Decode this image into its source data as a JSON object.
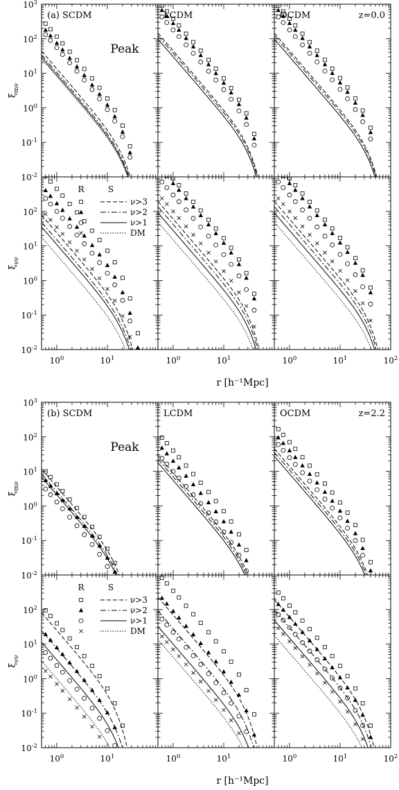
{
  "figure": {
    "xlabel_prefix": "r",
    "xlabel_unit": "[h⁻¹Mpc]",
    "ylabel_top": "ξ",
    "ylabel_top_sub": "mν",
    "ylabel_bottom": "ξ",
    "ylabel_bottom_sub": "νν",
    "method_label": "Peak",
    "xticks": [
      "10",
      "10",
      "10"
    ],
    "xtick_exps": [
      "0",
      "1",
      "2"
    ],
    "yticks": [
      "10",
      "10",
      "10",
      "10",
      "10",
      "10"
    ],
    "ytick_exps": [
      "-2",
      "-1",
      "0",
      "1",
      "2",
      "3"
    ],
    "legend": {
      "col_r": "R",
      "col_s": "S",
      "entries": [
        {
          "label": "ν>3",
          "marker": "square",
          "line": "dashed"
        },
        {
          "label": "ν>2",
          "marker": "triangle",
          "line": "dashdot"
        },
        {
          "label": "ν>1",
          "marker": "circle",
          "line": "solid"
        },
        {
          "label": "DM",
          "marker": "cross",
          "line": "dotted"
        }
      ]
    }
  },
  "blocks": [
    {
      "tag": "(a)",
      "z_label": "z=0.0",
      "models": [
        "SCDM",
        "LCDM",
        "OCDM"
      ]
    },
    {
      "tag": "(b)",
      "z_label": "z=2.2",
      "models": [
        "SCDM",
        "LCDM",
        "OCDM"
      ]
    }
  ],
  "chart_data": {
    "type": "scatter",
    "xscale": "log",
    "yscale": "log",
    "xlim": [
      0.5,
      100
    ],
    "ylim": [
      0.01,
      1000
    ],
    "r_points": [
      0.6,
      0.75,
      1.0,
      1.3,
      1.8,
      2.5,
      3.5,
      5.0,
      7.0,
      10.0,
      14.0,
      20.0,
      28.0,
      40.0
    ],
    "legend_position": "upper-center",
    "panels": [
      {
        "block": "(a)",
        "model": "SCDM",
        "row": "xi_mnu",
        "s3": 13.5,
        "s2": 10.5,
        "s1": 9.0,
        "dm": 8.0,
        "r3": 115,
        "r2": 75,
        "r1": 55,
        "r0": 0,
        "cut": 23,
        "sharp": 2.0
      },
      {
        "block": "(a)",
        "model": "LCDM",
        "row": "xi_mnu",
        "s3": 45,
        "s2": 38,
        "s1": 30,
        "dm": 0,
        "r3": 380,
        "r2": 280,
        "r1": 180,
        "r0": 0,
        "cut": 36,
        "sharp": 2.2
      },
      {
        "block": "(a)",
        "model": "OCDM",
        "row": "xi_mnu",
        "s3": 45,
        "s2": 38,
        "s1": 30,
        "dm": 0,
        "r3": 380,
        "r2": 280,
        "r1": 180,
        "r0": 0,
        "cut": 42,
        "sharp": 2.2
      },
      {
        "block": "(a)",
        "model": "SCDM",
        "row": "xi_nunu",
        "s3": 24,
        "s2": 15,
        "s1": 11,
        "dm": 5.5,
        "r3": 450,
        "r2": 170,
        "r1": 100,
        "r0": 35,
        "cut": 23,
        "sharp": 2.0
      },
      {
        "block": "(a)",
        "model": "LCDM",
        "row": "xi_nunu",
        "s3": 60,
        "s2": 42,
        "s1": 28,
        "dm": 15,
        "r3": 900,
        "r2": 650,
        "r1": 300,
        "r0": 100,
        "cut": 36,
        "sharp": 2.2
      },
      {
        "block": "(a)",
        "model": "OCDM",
        "row": "xi_nunu",
        "s3": 60,
        "s2": 42,
        "s1": 28,
        "dm": 15,
        "r3": 900,
        "r2": 650,
        "r1": 300,
        "r0": 100,
        "cut": 42,
        "sharp": 2.2
      },
      {
        "block": "(b)",
        "model": "SCDM",
        "row": "xi_mnu",
        "s3": 3.6,
        "s2": 2.6,
        "s1": 2.1,
        "dm": 0,
        "r3": 4.2,
        "r2": 2.3,
        "r1": 1.3,
        "r0": 0,
        "cut": 17,
        "sharp": 2.0
      },
      {
        "block": "(b)",
        "model": "LCDM",
        "row": "xi_mnu",
        "s3": 9,
        "s2": 7,
        "s1": 5.5,
        "dm": 0,
        "r3": 40,
        "r2": 20,
        "r1": 10,
        "r0": 0,
        "cut": 30,
        "sharp": 2.0
      },
      {
        "block": "(b)",
        "model": "OCDM",
        "row": "xi_mnu",
        "s3": 14,
        "s2": 11,
        "s1": 8.5,
        "dm": 0,
        "r3": 70,
        "r2": 40,
        "r1": 25,
        "r0": 0,
        "cut": 32,
        "sharp": 2.0
      },
      {
        "block": "(b)",
        "model": "SCDM",
        "row": "xi_nunu",
        "s3": 25,
        "s2": 7.5,
        "s1": 3.5,
        "dm": 1.0,
        "r3": 40,
        "r2": 8,
        "r1": 2.4,
        "r0": 0.7,
        "cut": 16,
        "sharp": 2.0
      },
      {
        "block": "(b)",
        "model": "LCDM",
        "row": "xi_nunu",
        "s3": 70,
        "s2": 28,
        "s1": 10,
        "dm": 4.2,
        "r3": 350,
        "r2": 90,
        "r1": 22,
        "r0": 7,
        "cut": 30,
        "sharp": 2.0
      },
      {
        "block": "(b)",
        "model": "OCDM",
        "row": "xi_nunu",
        "s3": 60,
        "s2": 30,
        "s1": 15,
        "dm": 5.5,
        "r3": 130,
        "r2": 60,
        "r1": 30,
        "r0": 12,
        "cut": 32,
        "sharp": 2.0
      }
    ]
  }
}
